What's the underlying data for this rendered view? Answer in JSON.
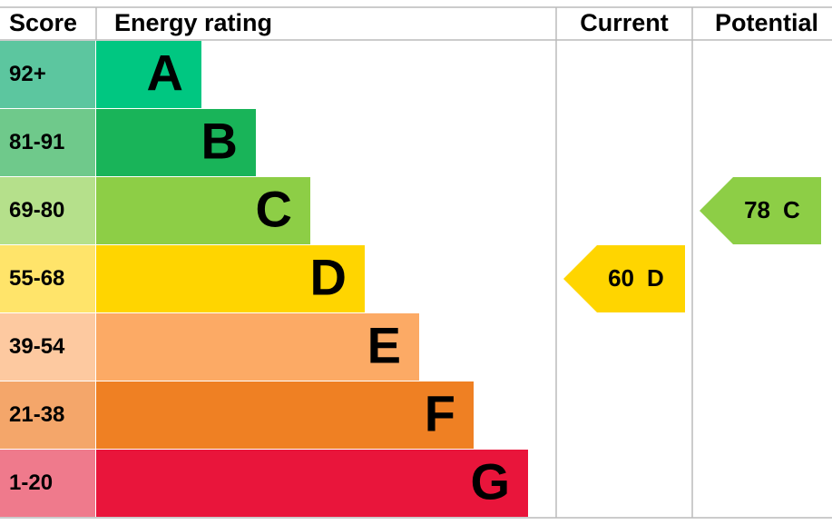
{
  "headers": {
    "score": "Score",
    "energy_rating": "Energy rating",
    "current": "Current",
    "potential": "Potential"
  },
  "rows": [
    {
      "score": "92+",
      "band": "A"
    },
    {
      "score": "81-91",
      "band": "B"
    },
    {
      "score": "69-80",
      "band": "C"
    },
    {
      "score": "55-68",
      "band": "D"
    },
    {
      "score": "39-54",
      "band": "E"
    },
    {
      "score": "21-38",
      "band": "F"
    },
    {
      "score": "1-20",
      "band": "G"
    }
  ],
  "current": {
    "score": 60,
    "band": "D"
  },
  "potential": {
    "score": 78,
    "band": "C"
  }
}
